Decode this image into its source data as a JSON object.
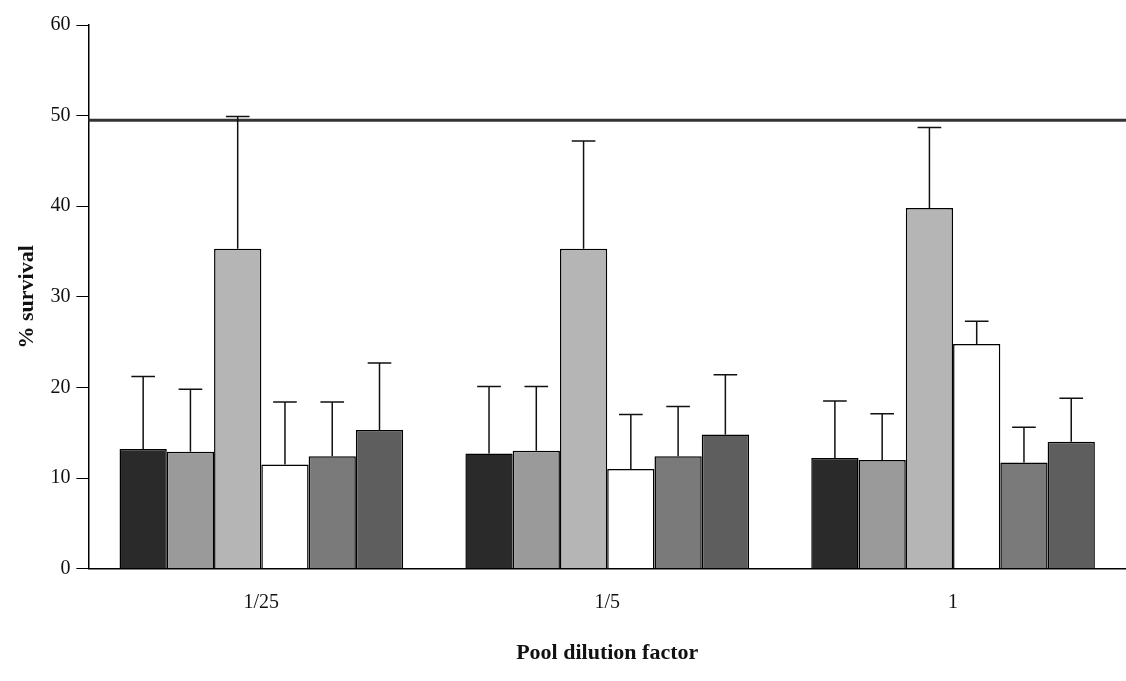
{
  "chart_data": {
    "type": "bar",
    "xlabel": "Pool dilution factor",
    "ylabel": "% survival",
    "categories": [
      "1/25",
      "1/5",
      "1"
    ],
    "ylim": [
      0,
      60
    ],
    "yticks": [
      0,
      10,
      20,
      30,
      40,
      50,
      60
    ],
    "grid": false,
    "legend": false,
    "ref_lines": [
      {
        "axis": "y",
        "value": 49.5,
        "color": "#333333"
      }
    ],
    "series": [
      {
        "color": "#2a2a2a",
        "values": [
          13.2,
          12.7,
          12.2
        ],
        "errors": [
          [
            13.2,
            21.2
          ],
          [
            12.7,
            20.1
          ],
          [
            12.2,
            18.5
          ]
        ]
      },
      {
        "color": "#9a9a9a",
        "values": [
          12.9,
          13.0,
          12.0
        ],
        "errors": [
          [
            12.9,
            19.8
          ],
          [
            13.0,
            20.1
          ],
          [
            12.0,
            17.1
          ]
        ]
      },
      {
        "color": "#b5b5b5",
        "values": [
          35.3,
          35.3,
          39.8
        ],
        "errors": [
          [
            35.3,
            49.9
          ],
          [
            35.3,
            47.2
          ],
          [
            39.8,
            48.7
          ]
        ]
      },
      {
        "color": "#ffffff",
        "values": [
          11.5,
          11.0,
          24.8
        ],
        "errors": [
          [
            11.5,
            18.4
          ],
          [
            11.0,
            17.0
          ],
          [
            24.8,
            27.3
          ]
        ]
      },
      {
        "color": "#7a7a7a",
        "values": [
          12.4,
          12.4,
          11.7
        ],
        "errors": [
          [
            12.4,
            18.4
          ],
          [
            12.4,
            17.9
          ],
          [
            11.7,
            15.6
          ]
        ]
      },
      {
        "color": "#5e5e5e",
        "values": [
          15.3,
          14.8,
          14.0
        ],
        "errors": [
          [
            15.3,
            22.7
          ],
          [
            14.8,
            21.4
          ],
          [
            14.0,
            18.8
          ]
        ]
      }
    ]
  }
}
